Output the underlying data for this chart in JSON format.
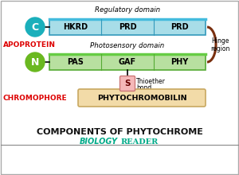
{
  "title": "COMPONENTS OF PHYTOCHROME",
  "subtitle": "BIOLOGY READER",
  "bg_color": "#ffffff",
  "regulatory_label": "Regulatory domain",
  "photosensory_label": "Photosensory domain",
  "apoprotein_label": "APOPROTEIN",
  "chromophore_label": "CHROMOPHORE",
  "hinge_label_1": "Hinge",
  "hinge_label_2": "region",
  "thioether_label_1": "Thioether",
  "thioether_label_2": "bond",
  "c_circle_color": "#1aafbb",
  "n_circle_color": "#6ab820",
  "reg_box_color": "#a8dde8",
  "reg_border_color": "#3399bb",
  "reg_top_line_color": "#44bbdd",
  "photo_box_color": "#b8e0a0",
  "photo_border_color": "#55aa33",
  "photo_top_line_color": "#66cc44",
  "s_box_color": "#f5b8b8",
  "s_border_color": "#cc7777",
  "chromophore_box_color": "#f2dba8",
  "chromophore_border_color": "#c8a860",
  "hinge_arc_color": "#7a3010",
  "domains_reg": [
    "HKRD",
    "PRD",
    "PRD"
  ],
  "domains_photo": [
    "PAS",
    "GAF",
    "PHY"
  ],
  "apoprotein_color": "#dd0000",
  "chromophore_color": "#dd0000",
  "title_color": "#111111",
  "subtitle_color": "#00aa88",
  "outer_border_color": "#aaaaaa",
  "divider_color": "#888888"
}
